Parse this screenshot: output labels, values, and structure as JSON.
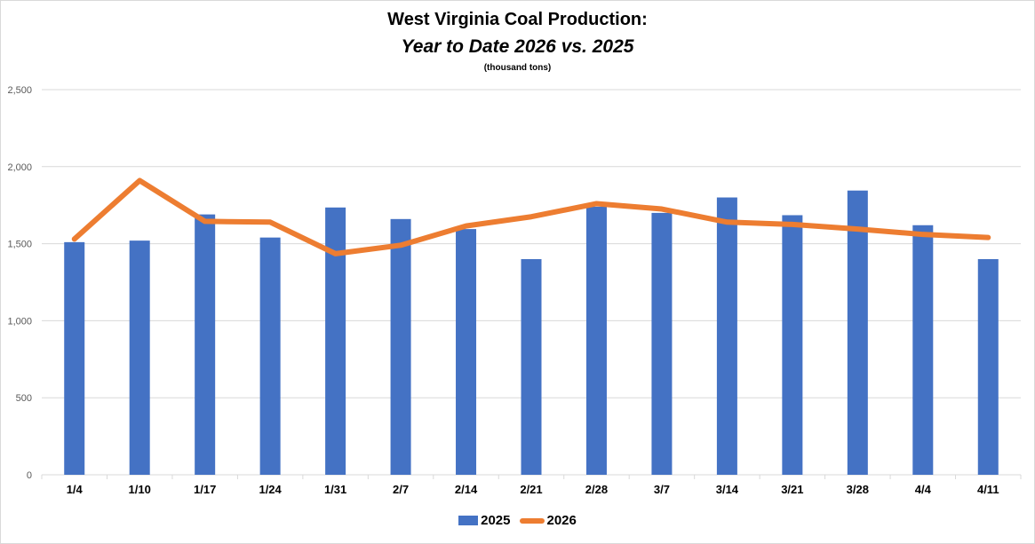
{
  "chart_data": {
    "type": "bar+line",
    "title": "West Virginia Coal Production:",
    "title_line2": "Year to Date 2026 vs. 2025",
    "subtitle": "(thousand tons)",
    "xlabel": "",
    "ylabel": "",
    "ylim": [
      0,
      2500
    ],
    "yticks": [
      0,
      500,
      1000,
      1500,
      2000,
      2500
    ],
    "ytick_labels": [
      "0",
      "500",
      "1,000",
      "1,500",
      "2,000",
      "2,500"
    ],
    "grid": true,
    "legend_position": "bottom",
    "categories": [
      "1/4",
      "1/10",
      "1/17",
      "1/24",
      "1/31",
      "2/7",
      "2/14",
      "2/21",
      "2/28",
      "3/7",
      "3/14",
      "3/21",
      "3/28",
      "4/4",
      "4/11"
    ],
    "series": [
      {
        "name": "2025",
        "type": "bar",
        "color": "#4472c4",
        "values": [
          1510,
          1520,
          1690,
          1540,
          1735,
          1660,
          1595,
          1400,
          1740,
          1700,
          1800,
          1685,
          1845,
          1620,
          1400
        ]
      },
      {
        "name": "2026",
        "type": "line",
        "color": "#ed7d31",
        "values": [
          1530,
          1910,
          1645,
          1640,
          1435,
          1490,
          1615,
          1675,
          1760,
          1725,
          1640,
          1625,
          1595,
          1560,
          1540
        ]
      }
    ]
  }
}
